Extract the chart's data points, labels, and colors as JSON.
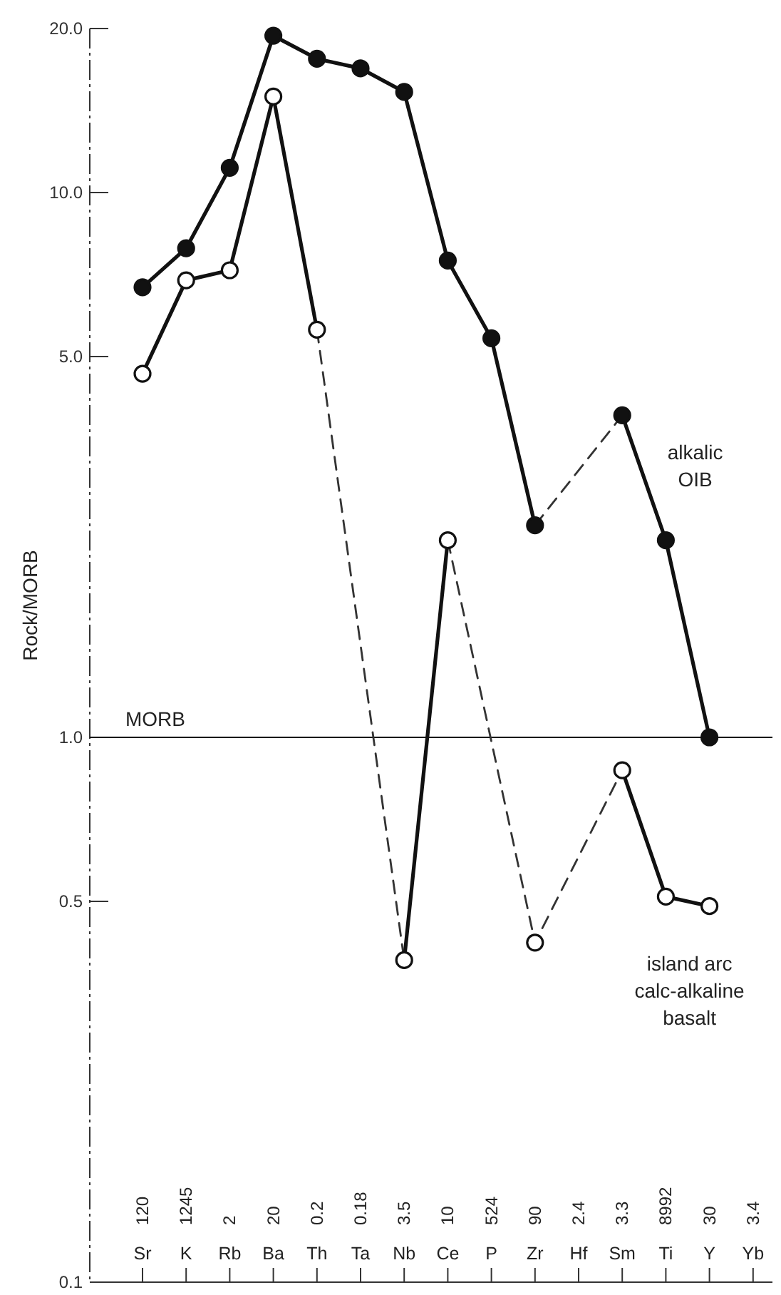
{
  "chart_data": {
    "type": "line",
    "ylabel": "Rock/MORB",
    "log": true,
    "ylim": [
      0.1,
      20
    ],
    "yticks": [
      {
        "value": 0.1,
        "label": "0.1"
      },
      {
        "value": 0.5,
        "label": "0.5"
      },
      {
        "value": 1,
        "label": "1.0"
      },
      {
        "value": 5,
        "label": "5.0"
      },
      {
        "value": 10,
        "label": "10.0"
      },
      {
        "value": 20,
        "label": "20.0"
      }
    ],
    "categories": [
      "Sr",
      "K",
      "Rb",
      "Ba",
      "Th",
      "Ta",
      "Nb",
      "Ce",
      "P",
      "Zr",
      "Hf",
      "Sm",
      "Ti",
      "Y",
      "Yb"
    ],
    "marker": "circle",
    "line_style": "solid",
    "grid": false,
    "legend": "right",
    "series": [
      {
        "name": "alkalic OIB",
        "color": "#111111",
        "values": [
          6.7,
          7.9,
          11.1,
          19.4,
          17.6,
          16.9,
          15.3,
          7.5,
          5.4,
          2.45,
          null,
          3.9,
          2.3,
          1.0,
          null
        ]
      },
      {
        "name": "island arc calc-alkaline basalt",
        "color": "#111111",
        "values": [
          4.65,
          6.9,
          7.2,
          15.0,
          5.6,
          null,
          0.39,
          2.3,
          null,
          0.42,
          null,
          0.87,
          0.51,
          0.49,
          null
        ]
      },
      {
        "color": "#333333",
        "line_style": "dashed",
        "marker": "none",
        "x": [
          "Zr",
          "Sm"
        ],
        "values": [
          2.45,
          3.9
        ]
      },
      {
        "color": "#333333",
        "line_style": "dashed",
        "marker": "none",
        "x": [
          "Th",
          "Nb"
        ],
        "values": [
          5.6,
          0.39
        ]
      },
      {
        "color": "#333333",
        "line_style": "dashed",
        "marker": "none",
        "x": [
          "Ce",
          "Zr",
          "Sm"
        ],
        "values": [
          2.3,
          0.42,
          0.87
        ]
      }
    ],
    "ref_lines": [
      {
        "axis": "y",
        "value": 1,
        "label": "MORB",
        "color": "#111111"
      }
    ],
    "annotations": [
      "120",
      "1245",
      "2",
      "20",
      "0.2",
      "0.18",
      "3.5",
      "10",
      "524",
      "90",
      "2.4",
      "3.3",
      "8992",
      "30",
      "3.4"
    ]
  }
}
